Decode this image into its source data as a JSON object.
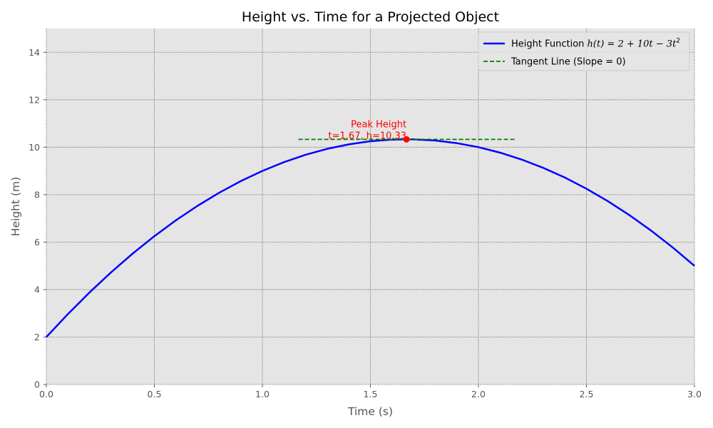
{
  "chart_data": {
    "type": "line",
    "title": "Height vs. Time for a Projected Object",
    "xlabel": "Time (s)",
    "ylabel": "Height (m)",
    "xlim": [
      0,
      3
    ],
    "ylim": [
      0,
      15
    ],
    "xticks": [
      0,
      0.5,
      1,
      1.5,
      2,
      2.5,
      3
    ],
    "xtick_labels": [
      "0.0",
      "0.5",
      "1.0",
      "1.5",
      "2.0",
      "2.5",
      "3.0"
    ],
    "yticks": [
      0,
      2,
      4,
      6,
      8,
      10,
      12,
      14
    ],
    "ytick_labels": [
      "0",
      "2",
      "4",
      "6",
      "8",
      "10",
      "12",
      "14"
    ],
    "grid": true,
    "legend_position": "top-right",
    "series": [
      {
        "name": "Height Function h(t) = 2 + 10t − 3t²",
        "legend_prefix": "Height Function ",
        "legend_math": "h(t) = 2 + 10t − 3t",
        "legend_sup": "2",
        "style": "solid",
        "color": "#0000ff",
        "x": [
          0,
          0.1,
          0.2,
          0.3,
          0.4,
          0.5,
          0.6,
          0.7,
          0.8,
          0.9,
          1.0,
          1.1,
          1.2,
          1.3,
          1.4,
          1.5,
          1.6,
          1.667,
          1.7,
          1.8,
          1.9,
          2.0,
          2.1,
          2.2,
          2.3,
          2.4,
          2.5,
          2.6,
          2.7,
          2.8,
          2.9,
          3.0
        ],
        "y": [
          2.0,
          2.97,
          3.88,
          4.73,
          5.52,
          6.25,
          6.92,
          7.53,
          8.08,
          8.57,
          9.0,
          9.37,
          9.68,
          9.93,
          10.12,
          10.25,
          10.32,
          10.33,
          10.33,
          10.28,
          10.17,
          10.0,
          9.77,
          9.48,
          9.13,
          8.72,
          8.25,
          7.72,
          7.13,
          6.48,
          5.77,
          5.0
        ]
      },
      {
        "name": "Tangent Line (Slope = 0)",
        "style": "dashed",
        "color": "#008000",
        "x": [
          1.167,
          2.167
        ],
        "y": [
          10.33,
          10.33
        ]
      }
    ],
    "points": [
      {
        "x": 1.667,
        "y": 10.33,
        "color": "#ff0000"
      }
    ],
    "annotations": [
      {
        "lines": [
          "Peak Height",
          "t=1.67, h=10.33"
        ],
        "x": 1.667,
        "y": 10.33,
        "color": "#ff0000"
      }
    ],
    "colors": {
      "plot_background": "#e5e5e5",
      "grid": "#808080",
      "axis_text": "#555555"
    }
  }
}
